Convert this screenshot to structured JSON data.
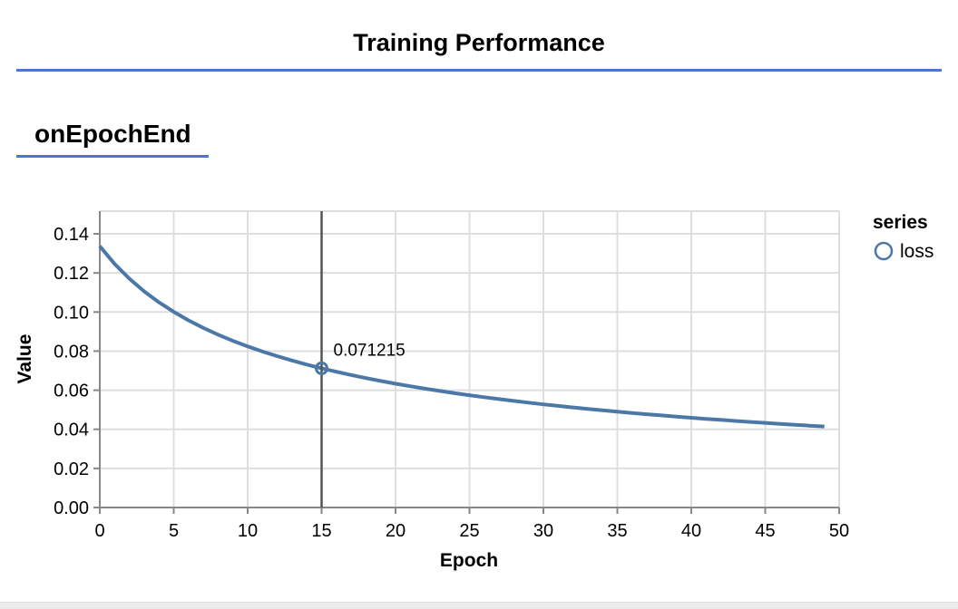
{
  "header": {
    "title": "Training Performance"
  },
  "section": {
    "label": "onEpochEnd"
  },
  "chart_data": {
    "type": "line",
    "xlabel": "Epoch",
    "ylabel": "Value",
    "xlim": [
      0,
      50
    ],
    "ylim": [
      0,
      0.1516
    ],
    "x_ticks": [
      0,
      5,
      10,
      15,
      20,
      25,
      30,
      35,
      40,
      45,
      50
    ],
    "y_ticks": [
      0.0,
      0.02,
      0.04,
      0.06,
      0.08,
      0.1,
      0.12,
      0.14
    ],
    "grid": true,
    "legend": {
      "title": "series",
      "position": "right",
      "items": [
        {
          "label": "loss",
          "color": "#4c78a8",
          "marker": "open-circle"
        }
      ]
    },
    "series": [
      {
        "name": "loss",
        "color": "#4c78a8",
        "x": [
          0,
          1,
          2,
          3,
          4,
          5,
          6,
          7,
          8,
          9,
          10,
          11,
          12,
          13,
          14,
          15,
          16,
          17,
          18,
          19,
          20,
          21,
          22,
          23,
          24,
          25,
          26,
          27,
          28,
          29,
          30,
          31,
          32,
          33,
          34,
          35,
          36,
          37,
          38,
          39,
          40,
          41,
          42,
          43,
          44,
          45,
          46,
          47,
          48,
          49
        ],
        "values": [
          0.1337,
          0.12464,
          0.11704,
          0.11058,
          0.10498,
          0.10008,
          0.09575,
          0.09189,
          0.08842,
          0.08528,
          0.08243,
          0.07981,
          0.07741,
          0.07518,
          0.07313,
          0.071215,
          0.06943,
          0.06776,
          0.06619,
          0.06473,
          0.06333,
          0.06202,
          0.06078,
          0.0596,
          0.05848,
          0.05742,
          0.0564,
          0.05544,
          0.05451,
          0.05363,
          0.05278,
          0.05197,
          0.05119,
          0.05044,
          0.04972,
          0.04903,
          0.04836,
          0.04772,
          0.0471,
          0.0465,
          0.04591,
          0.04535,
          0.04481,
          0.04429,
          0.04378,
          0.04328,
          0.0428,
          0.04233,
          0.04188,
          0.04144
        ]
      }
    ],
    "tooltip": {
      "epoch": 15,
      "value": 0.071215,
      "label": "0.071215"
    }
  },
  "colors": {
    "accent_rule": "#4878d0",
    "series_line": "#4c78a8",
    "grid_line": "#dedede",
    "axis_line": "#888888",
    "crosshair_rule": "#555555",
    "footer_strip": "#ececec"
  }
}
